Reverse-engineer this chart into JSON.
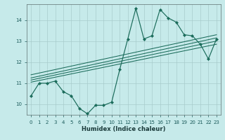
{
  "xlabel": "Humidex (Indice chaleur)",
  "ylabel": "",
  "bg_color": "#c6eaea",
  "grid_color": "#a8cccc",
  "line_color": "#1a6b5a",
  "xlim": [
    -0.5,
    23.5
  ],
  "ylim": [
    9.5,
    14.75
  ],
  "xticks": [
    0,
    1,
    2,
    3,
    4,
    5,
    6,
    7,
    8,
    9,
    10,
    11,
    12,
    13,
    14,
    15,
    16,
    17,
    18,
    19,
    20,
    21,
    22,
    23
  ],
  "yticks": [
    10,
    11,
    12,
    13,
    14
  ],
  "data_x": [
    0,
    1,
    2,
    3,
    4,
    5,
    6,
    7,
    8,
    9,
    10,
    11,
    12,
    13,
    14,
    15,
    16,
    17,
    18,
    19,
    20,
    21,
    22,
    23
  ],
  "data_y": [
    10.4,
    11.0,
    11.0,
    11.1,
    10.6,
    10.4,
    9.8,
    9.55,
    9.95,
    9.95,
    10.1,
    11.65,
    13.1,
    14.55,
    13.1,
    13.25,
    14.5,
    14.1,
    13.9,
    13.3,
    13.25,
    12.85,
    12.15,
    13.1
  ],
  "trend_lines": [
    {
      "x": [
        0,
        23
      ],
      "y": [
        11.05,
        12.85
      ]
    },
    {
      "x": [
        0,
        23
      ],
      "y": [
        11.15,
        13.0
      ]
    },
    {
      "x": [
        0,
        23
      ],
      "y": [
        11.25,
        13.15
      ]
    },
    {
      "x": [
        0,
        23
      ],
      "y": [
        11.4,
        13.3
      ]
    }
  ],
  "xlabel_fontsize": 6,
  "tick_fontsize": 5,
  "linewidth": 0.85,
  "markersize": 2.2
}
